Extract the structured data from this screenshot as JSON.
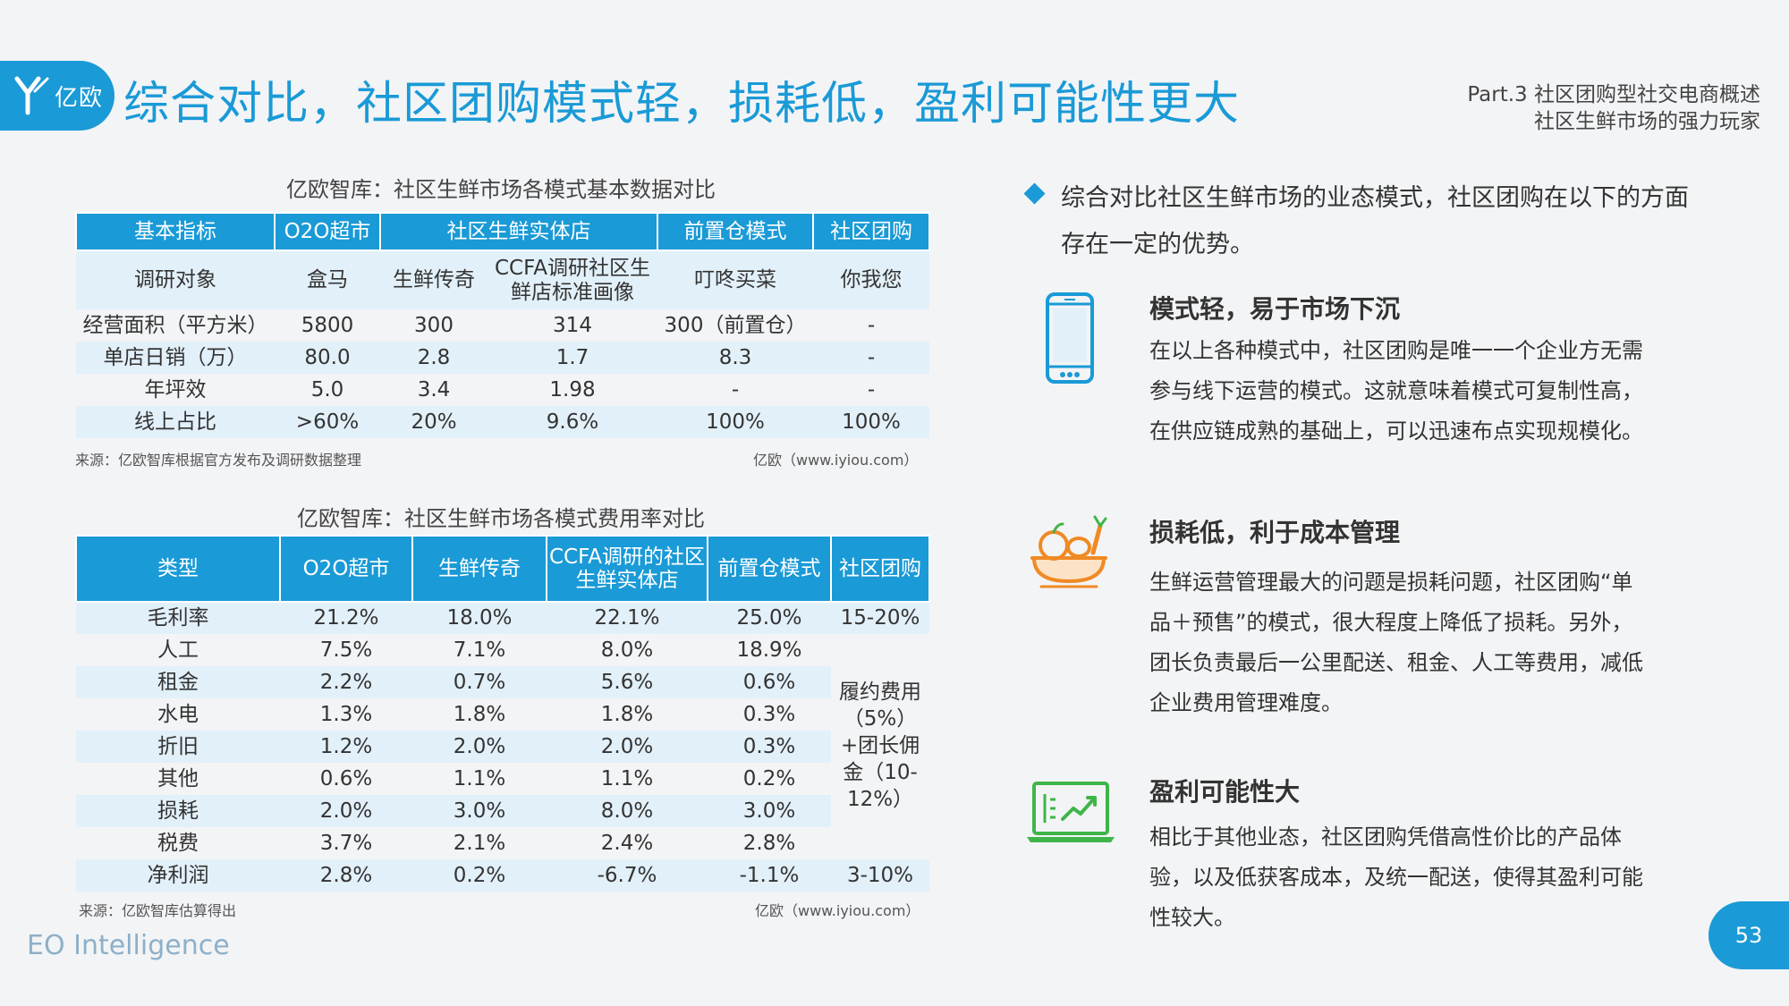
{
  "header": {
    "logo_text": "亿欧",
    "title": "综合对比，社区团购模式轻，损耗低，盈利可能性更大",
    "part_line1": "Part.3 社区团购型社交电商概述",
    "part_line2": "社区生鲜市场的强力玩家"
  },
  "table1": {
    "caption": "亿欧智库：社区生鲜市场各模式基本数据对比",
    "headers": [
      "基本指标",
      "O2O超市",
      "社区生鲜实体店",
      "前置仓模式",
      "社区团购"
    ],
    "survey_row": [
      "调研对象",
      "盒马",
      "生鲜传奇",
      "CCFA调研社区生鲜店标准画像",
      "叮咚买菜",
      "你我您"
    ],
    "rows": [
      [
        "经营面积（平方米）",
        "5800",
        "300",
        "314",
        "300（前置仓）",
        "-"
      ],
      [
        "单店日销（万）",
        "80.0",
        "2.8",
        "1.7",
        "8.3",
        "-"
      ],
      [
        "年坪效",
        "5.0",
        "3.4",
        "1.98",
        "-",
        "-"
      ],
      [
        "线上占比",
        ">60%",
        "20%",
        "9.6%",
        "100%",
        "100%"
      ]
    ],
    "source": "来源：亿欧智库根据官方发布及调研数据整理",
    "credit": "亿欧（www.iyiou.com）"
  },
  "table2": {
    "caption": "亿欧智库：社区生鲜市场各模式费用率对比",
    "headers": [
      "类型",
      "O2O超市",
      "生鲜传奇",
      "CCFA调研的社区生鲜实体店",
      "前置仓模式",
      "社区团购"
    ],
    "rows": [
      [
        "毛利率",
        "21.2%",
        "18.0%",
        "22.1%",
        "25.0%"
      ],
      [
        "人工",
        "7.5%",
        "7.1%",
        "8.0%",
        "18.9%"
      ],
      [
        "租金",
        "2.2%",
        "0.7%",
        "5.6%",
        "0.6%"
      ],
      [
        "水电",
        "1.3%",
        "1.8%",
        "1.8%",
        "0.3%"
      ],
      [
        "折旧",
        "1.2%",
        "2.0%",
        "2.0%",
        "0.3%"
      ],
      [
        "其他",
        "0.6%",
        "1.1%",
        "1.1%",
        "0.2%"
      ],
      [
        "损耗",
        "2.0%",
        "3.0%",
        "8.0%",
        "3.0%"
      ],
      [
        "税费",
        "3.7%",
        "2.1%",
        "2.4%",
        "2.8%"
      ],
      [
        "净利润",
        "2.8%",
        "0.2%",
        "-6.7%",
        "-1.1%"
      ]
    ],
    "group_margin": "15-20%",
    "group_cost": "履约费用（5%）+团长佣金（10-12%）",
    "group_profit": "3-10%",
    "source": "来源：亿欧智库估算得出",
    "credit": "亿欧（www.iyiou.com）"
  },
  "right": {
    "bullet": "综合对比社区生鲜市场的业态模式，社区团购在以下的方面存在一定的优势。",
    "features": [
      {
        "icon": "smartphone-icon",
        "title": "模式轻，易于市场下沉",
        "text": "在以上各种模式中，社区团购是唯一一个企业方无需参与线下运营的模式。这就意味着模式可复制性高，在供应链成熟的基础上，可以迅速布点实现规模化。"
      },
      {
        "icon": "fruit-basket-icon",
        "title": "损耗低，利于成本管理",
        "text": "生鲜运营管理最大的问题是损耗问题，社区团购“单品＋预售”的模式，很大程度上降低了损耗。另外，团长负责最后一公里配送、租金、人工等费用，减低企业费用管理难度。"
      },
      {
        "icon": "growth-chart-laptop-icon",
        "title": "盈利可能性大",
        "text": "相比于其他业态，社区团购凭借高性价比的产品体验，以及低获客成本，及统一配送，使得其盈利可能性较大。"
      }
    ]
  },
  "footer": {
    "brand": "EO Intelligence",
    "page": "53"
  },
  "colors": {
    "accent": "#1a9ad6",
    "stripe": "#e2f0f9",
    "icon_orange": "#f08a24",
    "icon_green": "#3fb549"
  }
}
